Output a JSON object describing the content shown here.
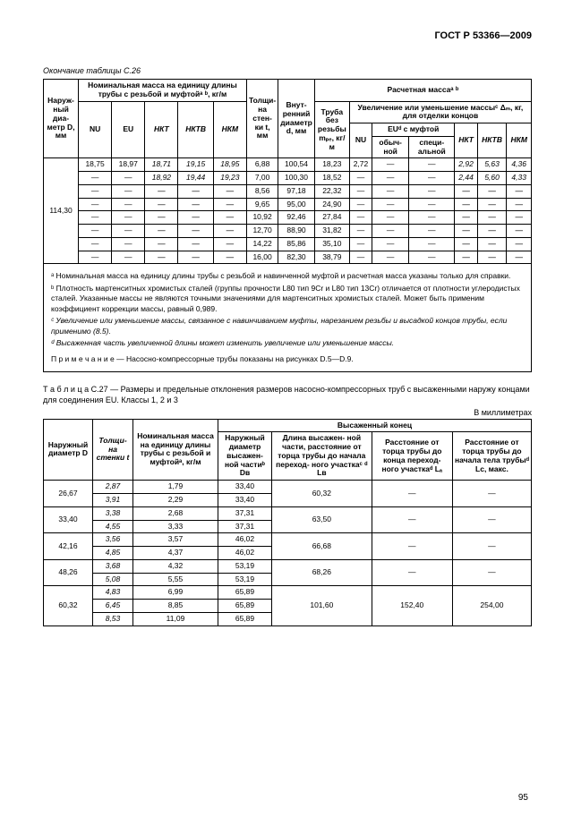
{
  "header": "ГОСТ Р 53366—2009",
  "t1_cap": "Окончание таблицы С.26",
  "t1_h": {
    "c1": "Наруж-\nный диа-\nметр\nD,\nмм",
    "c2": "Номинальная масса на единицу длины трубы с резьбой и муфтойᵃ ᵇ, кг/м",
    "c2a": "NU",
    "c2b": "EU",
    "c2c": "НКТ",
    "c2d": "НКТВ",
    "c2e": "НКМ",
    "c3": "Толщи-\nна стен-\nки t,\nмм",
    "c4": "Внут-\nренний\nдиаметр\nd,\nмм",
    "c5": "Расчетная массаᵃ ᵇ",
    "c5a": "Труба\nбез\nрезьбы\nmₚₑ,\nкг/м",
    "c5b": "Увеличение или уменьшение массыᶜ Δₘ, кг,\nдля отделки концов",
    "c5b1": "NU",
    "c5b2": "EUᵈ с муфтой",
    "c5b2a": "обыч-\nной",
    "c5b2b": "специ-\nальной",
    "c5b3": "НКТ",
    "c5b4": "НКТВ",
    "c5b5": "НКМ"
  },
  "t1_rows": [
    [
      "114,30",
      "18,75",
      "18,97",
      "18,71",
      "19,15",
      "18,95",
      "6,88",
      "100,54",
      "18,23",
      "2,72",
      "—",
      "—",
      "2,92",
      "5,63",
      "4,36"
    ],
    [
      "",
      "—",
      "—",
      "18,92",
      "19,44",
      "19,23",
      "7,00",
      "100,30",
      "18,52",
      "—",
      "—",
      "—",
      "2,44",
      "5,60",
      "4,33"
    ],
    [
      "",
      "—",
      "—",
      "—",
      "—",
      "—",
      "8,56",
      "97,18",
      "22,32",
      "—",
      "—",
      "—",
      "—",
      "—",
      "—"
    ],
    [
      "",
      "—",
      "—",
      "—",
      "—",
      "—",
      "9,65",
      "95,00",
      "24,90",
      "—",
      "—",
      "—",
      "—",
      "—",
      "—"
    ],
    [
      "",
      "—",
      "—",
      "—",
      "—",
      "—",
      "10,92",
      "92,46",
      "27,84",
      "—",
      "—",
      "—",
      "—",
      "—",
      "—"
    ],
    [
      "",
      "—",
      "—",
      "—",
      "—",
      "—",
      "12,70",
      "88,90",
      "31,82",
      "—",
      "—",
      "—",
      "—",
      "—",
      "—"
    ],
    [
      "",
      "—",
      "—",
      "—",
      "—",
      "—",
      "14,22",
      "85,86",
      "35,10",
      "—",
      "—",
      "—",
      "—",
      "—",
      "—"
    ],
    [
      "",
      "—",
      "—",
      "—",
      "—",
      "—",
      "16,00",
      "82,30",
      "38,79",
      "—",
      "—",
      "—",
      "—",
      "—",
      "—"
    ]
  ],
  "notes": {
    "a": "ᵃ Номинальная масса на единицу длины трубы с резьбой и навинченной муфтой и расчетная масса указаны только для справки.",
    "b": "ᵇ Плотность мартенситных хромистых сталей (группы прочности L80 тип 9Cr и L80 тип 13Cr) отличается от плотности углеродистых сталей. Указанные массы не являются точными значениями для мартенситных хромистых сталей. Может быть применим коэффициент коррекции массы, равный 0,989.",
    "c": "ᶜ Увеличение или уменьшение массы, связанное с навинчиванием муфты, нарезанием резьбы и высадкой концов трубы, если применимо (8.5).",
    "d": "ᵈ Высаженная часть увеличенной длины  может изменить увеличение или уменьшение массы.",
    "p": "П р и м е ч а н и е — Насосно-компрессорные трубы  показаны на рисунках  D.5—D.9."
  },
  "t2_cap": "Т а б л и ц а  С.27 — Размеры и предельные отклонения размеров насосно-компрессорных труб с высаженными наружу концами для соединения EU.   Классы 1, 2 и 3",
  "t2_unit": "В миллиметрах",
  "t2_h": {
    "c1": "Наружный\nдиаметр\nD",
    "c2": "Толщи-\nна\nстенки\nt",
    "c3": "Номинальная масса\nна единицу длины\nтрубы с резьбой и\nмуфтойᵃ,\nкг/м",
    "g": "Высаженный конец",
    "c4": "Наружный\nдиаметр\nвысажен-\nной частиᵇ\nDв",
    "c5": "Длина высажен-\nной части,\nрасстояние от\nторца трубы до\nначала переход-\nного участкаᶜ ᵈ\nLв",
    "c6": "Расстояние от\nторца трубы до\nконца переход-\nного участкаᵈ\nLₐ",
    "c7": "Расстояние от\nторца трубы до\nначала тела\nтрубыᵈ\nLс, макс."
  },
  "t2_rows": [
    {
      "D": "26,67",
      "t": "2,87",
      "m": "1,79",
      "Dv": "33,40",
      "Lv": "60,32",
      "La": "—",
      "Lc": "—",
      "first": true,
      "span": 2
    },
    {
      "D": "",
      "t": "3,91",
      "m": "2,29",
      "Dv": "33,40"
    },
    {
      "D": "33,40",
      "t": "3,38",
      "m": "2,68",
      "Dv": "37,31",
      "Lv": "63,50",
      "La": "—",
      "Lc": "—",
      "first": true,
      "span": 2
    },
    {
      "D": "",
      "t": "4,55",
      "m": "3,33",
      "Dv": "37,31"
    },
    {
      "D": "42,16",
      "t": "3,56",
      "m": "3,57",
      "Dv": "46,02",
      "Lv": "66,68",
      "La": "—",
      "Lc": "—",
      "first": true,
      "span": 2
    },
    {
      "D": "",
      "t": "4,85",
      "m": "4,37",
      "Dv": "46,02"
    },
    {
      "D": "48,26",
      "t": "3,68",
      "m": "4,32",
      "Dv": "53,19",
      "Lv": "68,26",
      "La": "—",
      "Lc": "—",
      "first": true,
      "span": 2
    },
    {
      "D": "",
      "t": "5,08",
      "m": "5,55",
      "Dv": "53,19"
    },
    {
      "D": "60,32",
      "t": "4,83",
      "m": "6,99",
      "Dv": "65,89",
      "Lv": "101,60",
      "La": "152,40",
      "Lc": "254,00",
      "first": true,
      "span": 3
    },
    {
      "D": "",
      "t": "6,45",
      "m": "8,85",
      "Dv": "65,89"
    },
    {
      "D": "",
      "t": "8,53",
      "m": "11,09",
      "Dv": "65,89"
    }
  ],
  "page": "95"
}
